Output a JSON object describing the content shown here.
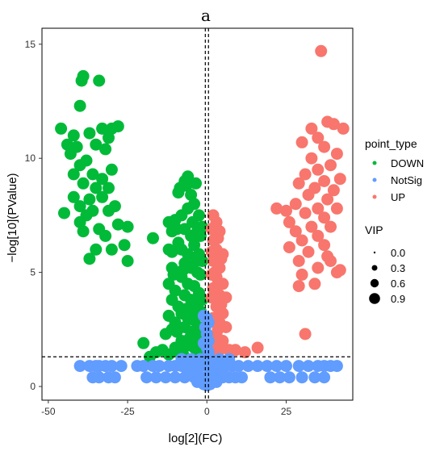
{
  "chart_data": {
    "type": "scatter",
    "title": "a",
    "xlabel": "log[2](FC)",
    "ylabel": "−log[10](PValue)",
    "xlim": [
      -52,
      46
    ],
    "ylim": [
      -0.6,
      15.7
    ],
    "xticks": [
      -50,
      -25,
      0,
      25
    ],
    "yticks": [
      0,
      5,
      10,
      15
    ],
    "grid": false,
    "reference_lines": {
      "vertical": [
        -0.5,
        0.5
      ],
      "horizontal": [
        1.3
      ]
    },
    "colors": {
      "DOWN": "#00BA38",
      "NotSig": "#619CFF",
      "UP": "#F8766D"
    },
    "legend_color": {
      "title": "point_type",
      "entries": [
        "DOWN",
        "NotSig",
        "UP"
      ],
      "position": "right"
    },
    "legend_size": {
      "title": "VIP",
      "entries": [
        "0.0",
        "0.3",
        "0.6",
        "0.9"
      ],
      "position": "right"
    },
    "series": [
      {
        "name": "DOWN",
        "points": [
          [
            -39,
            13.6
          ],
          [
            -39.5,
            13.4
          ],
          [
            -34,
            13.4
          ],
          [
            -40,
            12.3
          ],
          [
            -46,
            11.3
          ],
          [
            -42,
            11.0
          ],
          [
            -37,
            11.1
          ],
          [
            -33,
            11.3
          ],
          [
            -30,
            11.3
          ],
          [
            -28,
            11.4
          ],
          [
            -31,
            10.9
          ],
          [
            -44,
            10.6
          ],
          [
            -41,
            10.5
          ],
          [
            -35,
            10.6
          ],
          [
            -32,
            10.4
          ],
          [
            -43,
            10.2
          ],
          [
            -38,
            9.9
          ],
          [
            -40,
            9.7
          ],
          [
            -30,
            9.5
          ],
          [
            -42,
            9.3
          ],
          [
            -36,
            9.3
          ],
          [
            -33,
            9.1
          ],
          [
            -39,
            8.9
          ],
          [
            -35,
            8.7
          ],
          [
            -31,
            8.7
          ],
          [
            -42,
            8.3
          ],
          [
            -37,
            8.2
          ],
          [
            -33,
            8.3
          ],
          [
            -40,
            7.9
          ],
          [
            -36,
            7.7
          ],
          [
            -29,
            7.9
          ],
          [
            -45,
            7.6
          ],
          [
            -38,
            7.5
          ],
          [
            -31,
            7.7
          ],
          [
            -40,
            7.2
          ],
          [
            -28,
            7.1
          ],
          [
            -34,
            6.9
          ],
          [
            -25,
            7.0
          ],
          [
            -32,
            6.6
          ],
          [
            -39,
            6.8
          ],
          [
            -26,
            6.2
          ],
          [
            -30,
            6.0
          ],
          [
            -35,
            6.0
          ],
          [
            -37,
            5.6
          ],
          [
            -25,
            5.5
          ],
          [
            -17,
            6.5
          ],
          [
            -20,
            1.9
          ],
          [
            -16,
            1.5
          ],
          [
            -18,
            1.3
          ],
          [
            -14,
            1.6
          ],
          [
            -12,
            1.4
          ],
          [
            -10,
            1.7
          ],
          [
            -8,
            1.6
          ],
          [
            -7,
            9.0
          ],
          [
            -6,
            9.2
          ],
          [
            -9,
            8.5
          ],
          [
            -5,
            8.4
          ],
          [
            -8,
            7.5
          ],
          [
            -6,
            7.8
          ],
          [
            -4,
            8.0
          ],
          [
            -10,
            7.3
          ],
          [
            -7,
            6.9
          ],
          [
            -5,
            6.6
          ],
          [
            -3,
            6.8
          ],
          [
            -9,
            6.3
          ],
          [
            -8,
            6.0
          ],
          [
            -4,
            6.2
          ],
          [
            -6,
            5.8
          ],
          [
            -11,
            5.9
          ],
          [
            -7,
            5.4
          ],
          [
            -5,
            5.2
          ],
          [
            -9,
            5.0
          ],
          [
            -3,
            5.0
          ],
          [
            -8,
            4.8
          ],
          [
            -6,
            4.5
          ],
          [
            -4,
            4.4
          ],
          [
            -10,
            4.2
          ],
          [
            -7,
            4.0
          ],
          [
            -5,
            3.8
          ],
          [
            -9,
            3.5
          ],
          [
            -3,
            3.6
          ],
          [
            -8,
            3.2
          ],
          [
            -6,
            3.0
          ],
          [
            -4,
            2.9
          ],
          [
            -10,
            2.8
          ],
          [
            -7,
            2.6
          ],
          [
            -5,
            2.4
          ],
          [
            -3,
            2.2
          ],
          [
            -8,
            2.0
          ],
          [
            -6,
            1.8
          ],
          [
            -4,
            1.7
          ],
          [
            -2,
            1.6
          ],
          [
            -9,
            1.5
          ],
          [
            -12,
            7.2
          ],
          [
            -11,
            6.8
          ],
          [
            -12,
            6.0
          ],
          [
            -11,
            5.2
          ],
          [
            -12,
            4.5
          ],
          [
            -11,
            3.8
          ],
          [
            -12,
            3.1
          ],
          [
            -11,
            2.5
          ],
          [
            -13,
            2.3
          ],
          [
            -2.5,
            7.5
          ],
          [
            -2,
            6.6
          ],
          [
            -2.5,
            5.8
          ],
          [
            -2,
            4.9
          ],
          [
            -2.5,
            4.1
          ],
          [
            -2,
            3.3
          ],
          [
            -2.5,
            2.6
          ],
          [
            -2,
            2.0
          ],
          [
            -1.5,
            3.8
          ],
          [
            -1.5,
            5.5
          ],
          [
            -1.5,
            7.0
          ],
          [
            -3.5,
            8.9
          ],
          [
            -6.5,
            8.8
          ],
          [
            -8.5,
            8.7
          ],
          [
            -4.5,
            7.2
          ],
          [
            -9.5,
            6.9
          ],
          [
            -3.5,
            5.5
          ],
          [
            -7.5,
            5.1
          ],
          [
            -10.5,
            4.9
          ],
          [
            -4.5,
            3.3
          ],
          [
            -6.5,
            3.4
          ],
          [
            -9.5,
            2.4
          ],
          [
            -5.5,
            2.1
          ],
          [
            -7.5,
            1.4
          ],
          [
            -3,
            1.4
          ],
          [
            -1.5,
            1.5
          ]
        ]
      },
      {
        "name": "UP",
        "points": [
          [
            36,
            14.7
          ],
          [
            33,
            11.3
          ],
          [
            38,
            11.6
          ],
          [
            40,
            11.5
          ],
          [
            43,
            11.3
          ],
          [
            35,
            10.9
          ],
          [
            30,
            10.7
          ],
          [
            37,
            10.5
          ],
          [
            41,
            10.2
          ],
          [
            33,
            10.0
          ],
          [
            39,
            9.7
          ],
          [
            35,
            9.5
          ],
          [
            31,
            9.3
          ],
          [
            42,
            9.1
          ],
          [
            37,
            9.0
          ],
          [
            29,
            8.9
          ],
          [
            34,
            8.7
          ],
          [
            40,
            8.6
          ],
          [
            32,
            8.4
          ],
          [
            38,
            8.2
          ],
          [
            28,
            8.0
          ],
          [
            35,
            7.8
          ],
          [
            22,
            7.8
          ],
          [
            25,
            7.7
          ],
          [
            41,
            7.8
          ],
          [
            31,
            7.6
          ],
          [
            37,
            7.4
          ],
          [
            26,
            7.2
          ],
          [
            33,
            7.0
          ],
          [
            39,
            7.0
          ],
          [
            28,
            6.8
          ],
          [
            35,
            6.6
          ],
          [
            30,
            6.4
          ],
          [
            37,
            6.2
          ],
          [
            26,
            6.1
          ],
          [
            32,
            5.9
          ],
          [
            38,
            5.7
          ],
          [
            29,
            5.5
          ],
          [
            35,
            5.2
          ],
          [
            41,
            5.0
          ],
          [
            30,
            4.9
          ],
          [
            34,
            4.5
          ],
          [
            29,
            4.4
          ],
          [
            39,
            5.5
          ],
          [
            42,
            5.1
          ],
          [
            31,
            2.3
          ],
          [
            16,
            1.7
          ],
          [
            12,
            1.5
          ],
          [
            9,
            1.6
          ],
          [
            2,
            7.5
          ],
          [
            3,
            7.2
          ],
          [
            4,
            6.8
          ],
          [
            2,
            6.4
          ],
          [
            3,
            6.0
          ],
          [
            5,
            5.8
          ],
          [
            2,
            5.5
          ],
          [
            4,
            5.2
          ],
          [
            3,
            4.8
          ],
          [
            5,
            4.5
          ],
          [
            2,
            4.3
          ],
          [
            4,
            4.0
          ],
          [
            6,
            3.9
          ],
          [
            3,
            3.5
          ],
          [
            5,
            3.2
          ],
          [
            2,
            3.0
          ],
          [
            4,
            2.8
          ],
          [
            6,
            2.6
          ],
          [
            3,
            2.3
          ],
          [
            5,
            2.0
          ],
          [
            2,
            1.8
          ],
          [
            4,
            1.6
          ],
          [
            7,
            1.6
          ],
          [
            3,
            1.4
          ],
          [
            1.5,
            6.9
          ],
          [
            1.5,
            5.9
          ],
          [
            1.5,
            4.9
          ],
          [
            1.5,
            3.9
          ],
          [
            1.5,
            2.9
          ],
          [
            1.5,
            1.9
          ],
          [
            2.5,
            7.0
          ],
          [
            2.5,
            5.0
          ],
          [
            2.5,
            3.0
          ],
          [
            3.5,
            6.5
          ],
          [
            3.5,
            4.5
          ],
          [
            3.5,
            2.5
          ],
          [
            4.5,
            5.6
          ],
          [
            4.5,
            3.6
          ],
          [
            4.5,
            1.8
          ]
        ]
      },
      {
        "name": "NotSig",
        "points": [
          [
            -1,
            3.1
          ],
          [
            0,
            3.0
          ],
          [
            0.5,
            2.8
          ],
          [
            -0.5,
            2.6
          ],
          [
            0,
            2.3
          ],
          [
            0.5,
            2.0
          ],
          [
            -1,
            1.9
          ],
          [
            0,
            1.7
          ],
          [
            0.5,
            1.5
          ],
          [
            -40,
            0.9
          ],
          [
            -37,
            0.9
          ],
          [
            -35,
            0.9
          ],
          [
            -34,
            0.9
          ],
          [
            -32,
            0.9
          ],
          [
            -30,
            0.9
          ],
          [
            -27,
            0.9
          ],
          [
            -22,
            0.9
          ],
          [
            -20,
            0.9
          ],
          [
            -17,
            0.9
          ],
          [
            -15,
            0.9
          ],
          [
            -12,
            0.9
          ],
          [
            -10,
            0.9
          ],
          [
            -8,
            0.9
          ],
          [
            -6,
            0.9
          ],
          [
            -4,
            0.9
          ],
          [
            -2,
            0.9
          ],
          [
            0,
            0.9
          ],
          [
            2,
            0.9
          ],
          [
            4,
            0.9
          ],
          [
            6,
            0.9
          ],
          [
            8,
            0.9
          ],
          [
            10,
            0.9
          ],
          [
            13,
            0.9
          ],
          [
            16,
            0.9
          ],
          [
            19,
            0.9
          ],
          [
            22,
            0.9
          ],
          [
            25,
            0.9
          ],
          [
            29,
            0.9
          ],
          [
            32,
            0.9
          ],
          [
            35,
            0.9
          ],
          [
            37,
            0.9
          ],
          [
            39,
            0.9
          ],
          [
            41,
            0.9
          ],
          [
            -36,
            0.4
          ],
          [
            -34,
            0.4
          ],
          [
            -31,
            0.4
          ],
          [
            -29,
            0.4
          ],
          [
            -19,
            0.4
          ],
          [
            -16,
            0.4
          ],
          [
            -13,
            0.4
          ],
          [
            -10,
            0.4
          ],
          [
            -7,
            0.4
          ],
          [
            -4,
            0.4
          ],
          [
            -1,
            0.4
          ],
          [
            1,
            0.4
          ],
          [
            3,
            0.4
          ],
          [
            5,
            0.4
          ],
          [
            7,
            0.4
          ],
          [
            9,
            0.4
          ],
          [
            11,
            0.4
          ],
          [
            20,
            0.4
          ],
          [
            23,
            0.4
          ],
          [
            26,
            0.4
          ],
          [
            30,
            0.4
          ],
          [
            34,
            0.4
          ],
          [
            37,
            0.4
          ],
          [
            -8,
            1.2
          ],
          [
            -5,
            1.2
          ],
          [
            -2,
            1.2
          ],
          [
            1,
            1.2
          ],
          [
            4,
            1.2
          ],
          [
            7,
            1.2
          ],
          [
            -6,
            0.6
          ],
          [
            -3,
            0.6
          ],
          [
            2,
            0.6
          ],
          [
            5,
            0.6
          ],
          [
            -1,
            0.1
          ],
          [
            0,
            0.05
          ],
          [
            1,
            0.1
          ],
          [
            -3,
            0.2
          ],
          [
            3,
            0.2
          ]
        ]
      }
    ]
  }
}
